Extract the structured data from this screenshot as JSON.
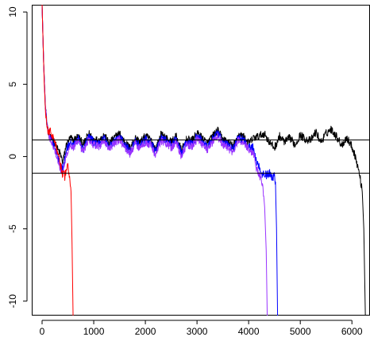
{
  "chart_data": {
    "type": "line",
    "title": "",
    "xlabel": "",
    "ylabel": "",
    "xlim": [
      -200,
      6350
    ],
    "ylim": [
      -11,
      10.5
    ],
    "x_ticks": [
      0,
      1000,
      2000,
      3000,
      4000,
      5000,
      6000
    ],
    "x_tick_labels": [
      "0",
      "1000",
      "2000",
      "3000",
      "4000",
      "5000",
      "6000"
    ],
    "y_ticks": [
      -10,
      -5,
      0,
      5,
      10
    ],
    "y_tick_labels": [
      "-10",
      "-5",
      "0",
      "5",
      "10"
    ],
    "hlines": [
      1.15,
      -1.15
    ],
    "grid": false,
    "legend": "none",
    "series": [
      {
        "color": "#000000",
        "x": [
          0,
          30,
          60,
          90,
          130,
          170,
          200,
          250,
          300,
          350,
          400,
          430,
          460,
          500,
          550,
          600,
          700,
          800,
          900,
          1000,
          1100,
          1200,
          1300,
          1400,
          1500,
          1600,
          1700,
          1800,
          1900,
          2000,
          2100,
          2200,
          2300,
          2400,
          2500,
          2600,
          2700,
          2800,
          2900,
          3000,
          3100,
          3200,
          3300,
          3400,
          3500,
          3600,
          3700,
          3800,
          3900,
          4000,
          4100,
          4200,
          4300,
          4400,
          4500,
          4600,
          4700,
          4800,
          4900,
          5000,
          5100,
          5200,
          5300,
          5400,
          5500,
          5600,
          5700,
          5800,
          5900,
          6000,
          6050,
          6100,
          6150,
          6200,
          6230,
          6260
        ],
        "values": [
          10.5,
          6.5,
          3.8,
          2.4,
          1.5,
          1.2,
          1.3,
          0.9,
          0.5,
          0.2,
          -0.4,
          0.1,
          0.7,
          1.0,
          1.3,
          1.1,
          1.4,
          0.8,
          1.6,
          1.2,
          1.1,
          1.5,
          0.9,
          1.3,
          1.6,
          1.0,
          0.6,
          1.3,
          1.0,
          1.4,
          1.2,
          0.5,
          1.5,
          1.3,
          1.0,
          1.4,
          0.4,
          1.2,
          1.1,
          1.6,
          1.3,
          0.9,
          1.4,
          1.8,
          1.2,
          1.0,
          0.7,
          1.5,
          1.4,
          0.9,
          1.3,
          1.4,
          1.6,
          1.0,
          0.6,
          1.4,
          1.0,
          1.3,
          0.8,
          1.5,
          1.2,
          1.1,
          1.7,
          1.0,
          1.6,
          1.9,
          1.4,
          0.8,
          1.3,
          0.7,
          0.2,
          -0.5,
          -1.3,
          -2.4,
          -5.0,
          -11.0
        ]
      },
      {
        "color": "#0000ff",
        "x": [
          0,
          30,
          60,
          90,
          130,
          170,
          200,
          250,
          300,
          350,
          400,
          430,
          460,
          500,
          550,
          600,
          700,
          800,
          900,
          1000,
          1100,
          1200,
          1300,
          1400,
          1500,
          1600,
          1700,
          1800,
          1900,
          2000,
          2100,
          2200,
          2300,
          2400,
          2500,
          2600,
          2700,
          2800,
          2900,
          3000,
          3100,
          3200,
          3300,
          3400,
          3500,
          3600,
          3700,
          3800,
          3900,
          4000,
          4100,
          4150,
          4200,
          4250,
          4300,
          4350,
          4400,
          4450,
          4500,
          4520,
          4540,
          4560
        ],
        "values": [
          10.5,
          6.5,
          3.8,
          2.4,
          1.5,
          1.2,
          1.1,
          0.6,
          0.1,
          -0.5,
          -0.9,
          -0.4,
          0.3,
          0.7,
          1.0,
          0.8,
          1.2,
          0.5,
          1.4,
          1.0,
          0.9,
          1.3,
          0.7,
          1.1,
          1.4,
          0.8,
          0.4,
          1.1,
          0.8,
          1.2,
          1.0,
          0.3,
          1.3,
          1.1,
          0.8,
          1.2,
          0.2,
          1.0,
          0.9,
          1.4,
          1.1,
          0.7,
          1.2,
          1.6,
          1.0,
          0.8,
          0.5,
          1.3,
          1.2,
          0.7,
          0.6,
          -0.4,
          -0.6,
          -1.2,
          -1.1,
          -1.3,
          -1.1,
          -1.5,
          -1.3,
          -2.0,
          -5.0,
          -11.0
        ]
      },
      {
        "color": "#9933ff",
        "x": [
          0,
          30,
          60,
          90,
          130,
          170,
          200,
          250,
          300,
          350,
          400,
          430,
          460,
          500,
          550,
          600,
          700,
          800,
          900,
          1000,
          1100,
          1200,
          1300,
          1400,
          1500,
          1600,
          1700,
          1800,
          1900,
          2000,
          2100,
          2200,
          2300,
          2400,
          2500,
          2600,
          2700,
          2800,
          2900,
          3000,
          3100,
          3200,
          3300,
          3400,
          3500,
          3600,
          3700,
          3800,
          3900,
          4000,
          4100,
          4150,
          4200,
          4250,
          4280,
          4310,
          4340,
          4360
        ],
        "values": [
          10.5,
          6.5,
          3.8,
          2.4,
          1.5,
          1.1,
          0.9,
          0.4,
          -0.2,
          -0.8,
          -1.2,
          -0.7,
          -0.1,
          0.4,
          0.8,
          0.6,
          1.0,
          0.3,
          1.2,
          0.8,
          0.7,
          1.1,
          0.5,
          0.9,
          1.2,
          0.6,
          0.2,
          0.9,
          0.6,
          1.0,
          0.8,
          0.1,
          1.1,
          0.9,
          0.6,
          1.0,
          0.0,
          0.8,
          0.7,
          1.2,
          0.9,
          0.5,
          1.0,
          1.4,
          0.8,
          0.6,
          0.3,
          1.1,
          1.0,
          0.5,
          0.2,
          -0.8,
          -1.2,
          -1.6,
          -2.2,
          -3.5,
          -6.5,
          -11.0
        ]
      },
      {
        "color": "#ff0000",
        "x": [
          0,
          20,
          40,
          60,
          80,
          100,
          130,
          160,
          190,
          220,
          250,
          280,
          310,
          340,
          370,
          400,
          420,
          440,
          470,
          500,
          520,
          540,
          560,
          580,
          600
        ],
        "values": [
          10.5,
          7.8,
          5.2,
          3.6,
          2.6,
          2.0,
          1.6,
          1.8,
          1.3,
          1.6,
          1.0,
          0.6,
          0.2,
          -0.3,
          -0.8,
          -1.3,
          -1.1,
          -1.4,
          -0.8,
          -0.6,
          -1.2,
          -1.8,
          -2.2,
          -6.0,
          -11.0
        ]
      }
    ]
  }
}
